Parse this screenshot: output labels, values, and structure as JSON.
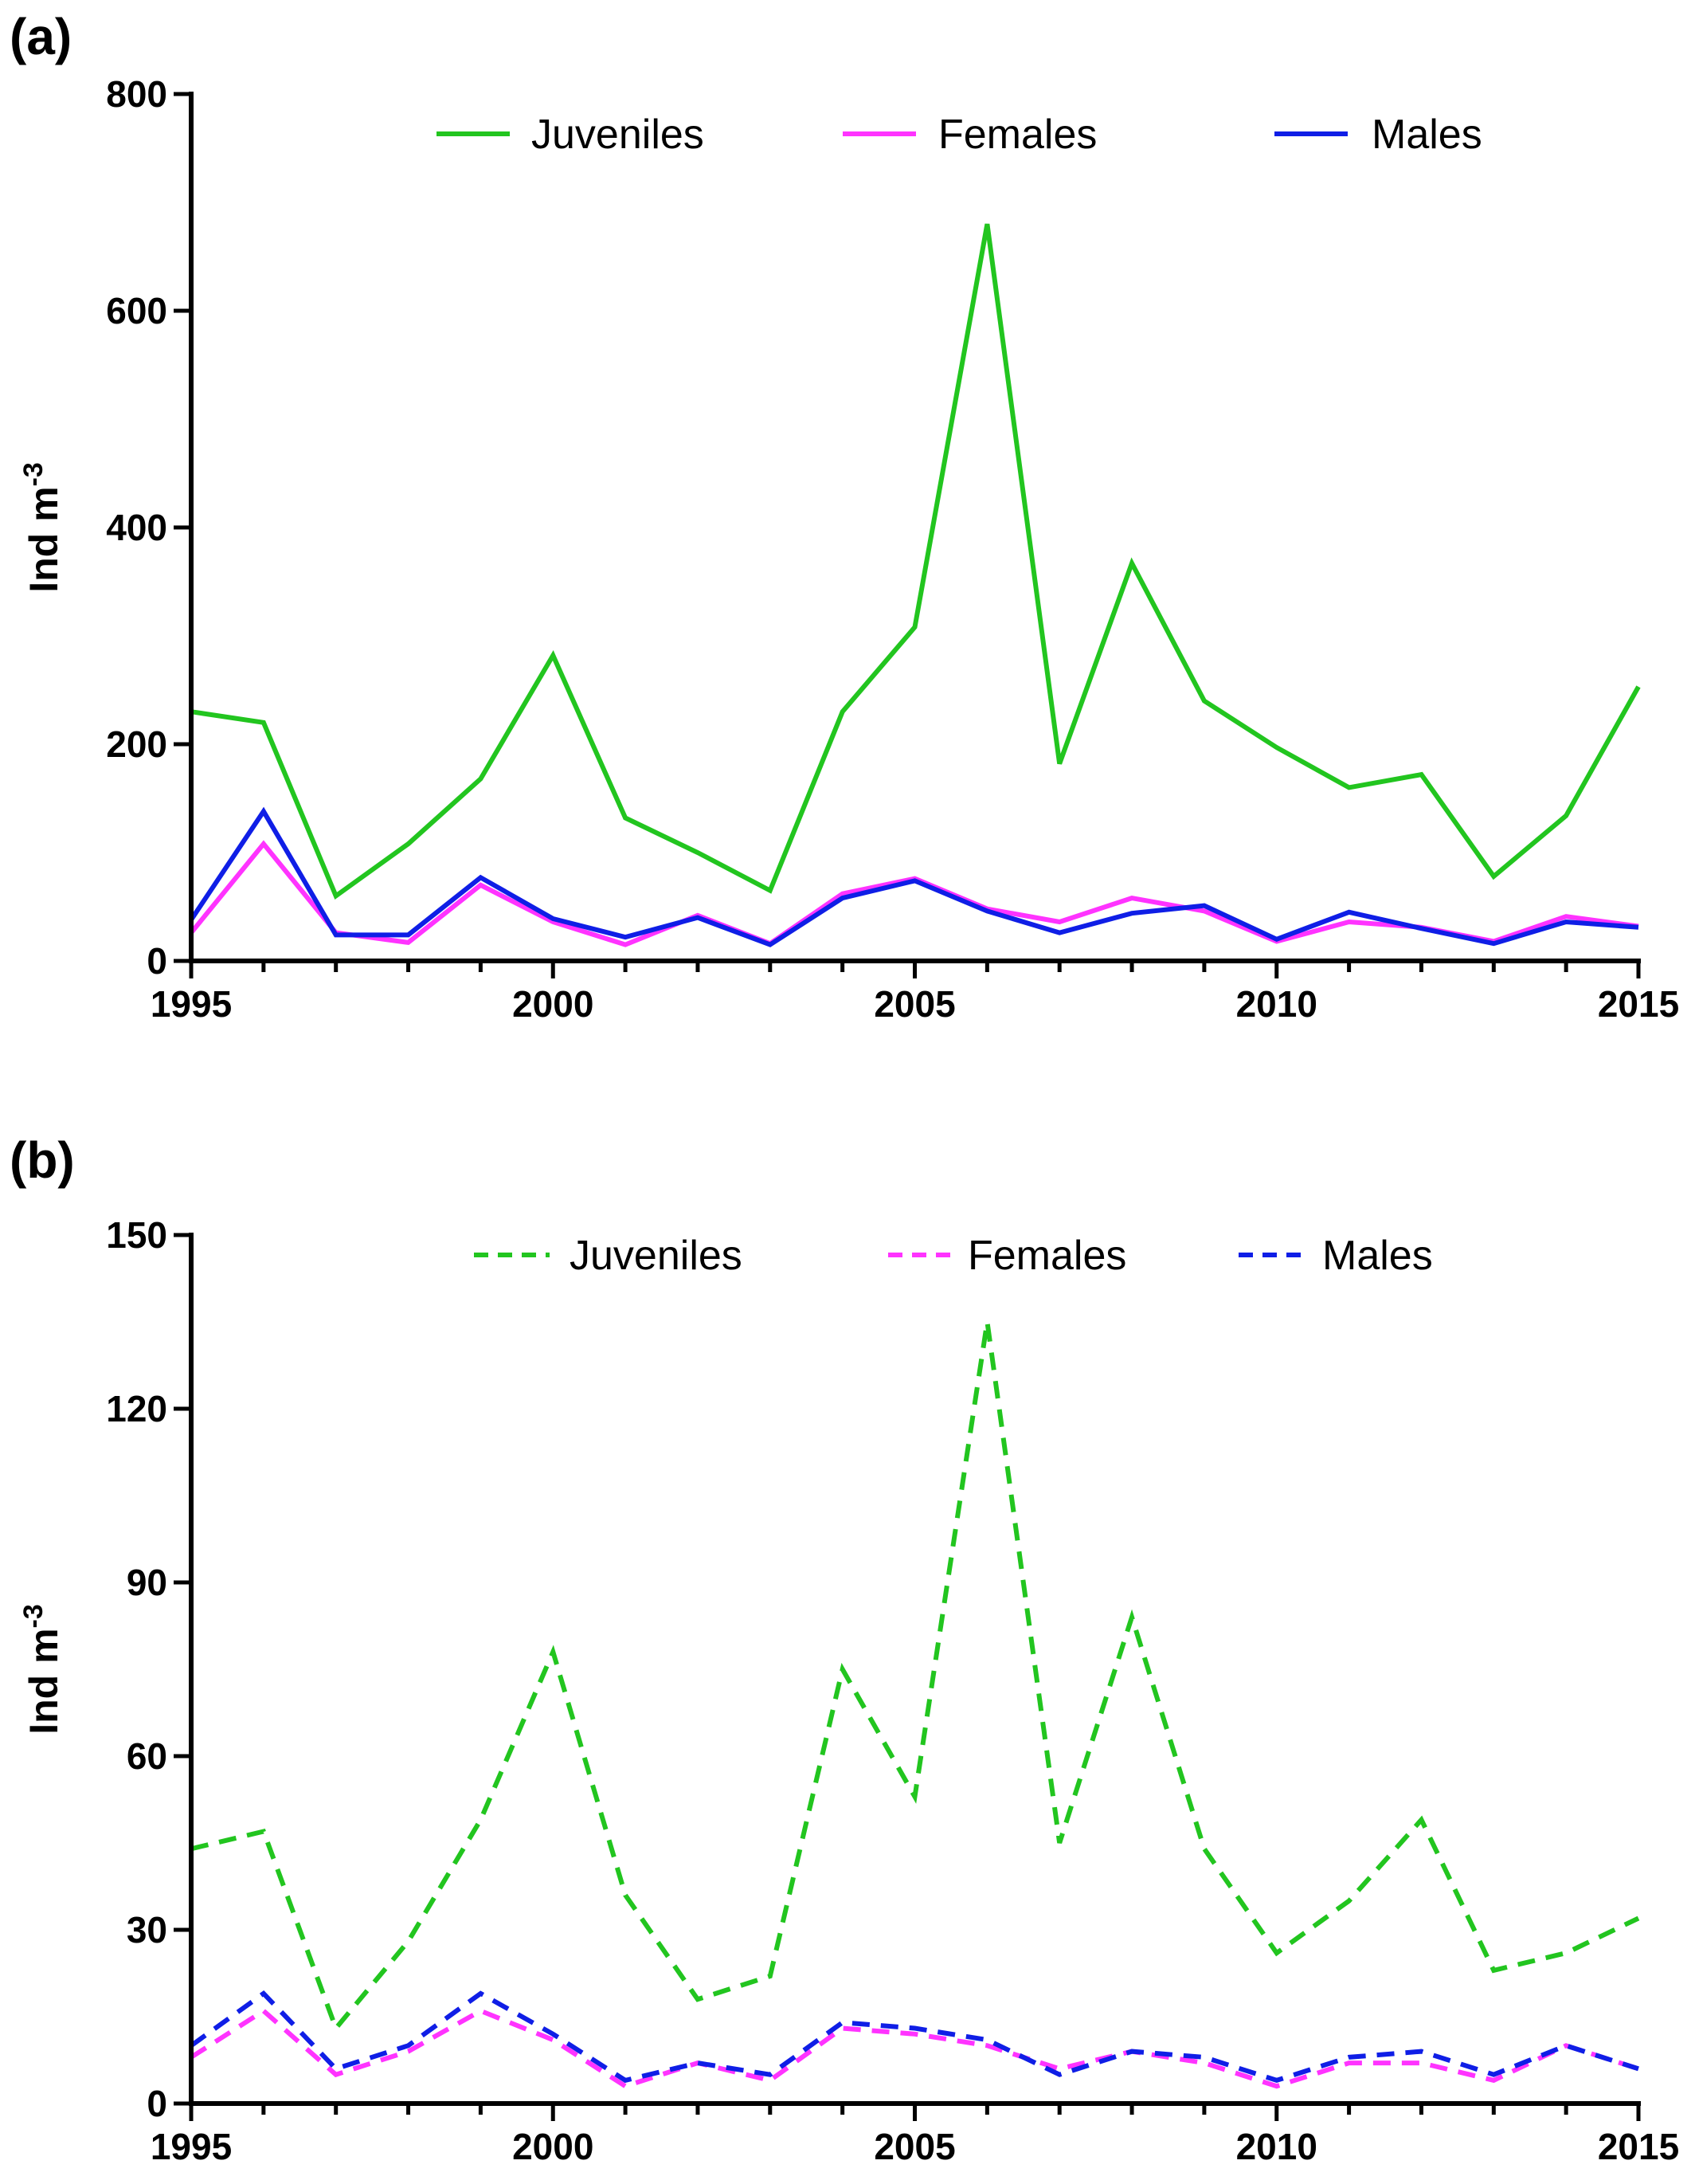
{
  "colors": {
    "juveniles": "#22c51f",
    "females": "#ff33ff",
    "males": "#0f1ee6",
    "axis": "#000000"
  },
  "chart_data": [
    {
      "type": "line",
      "panel_label": "(a)",
      "ylabel": "Ind m",
      "ylabel_superscript": "-3",
      "xlim": [
        1995,
        2015
      ],
      "ylim": [
        0,
        800
      ],
      "x_ticks": [
        1995,
        2000,
        2005,
        2010,
        2015
      ],
      "y_ticks": [
        0,
        200,
        400,
        600,
        800
      ],
      "line_style": "solid",
      "grid": false,
      "legend_position": "top",
      "x": [
        1995,
        1996,
        1997,
        1998,
        1999,
        2000,
        2001,
        2002,
        2003,
        2004,
        2005,
        2006,
        2007,
        2008,
        2009,
        2010,
        2011,
        2012,
        2013,
        2014,
        2015
      ],
      "series": [
        {
          "name": "Juveniles",
          "color_key": "juveniles",
          "values": [
            230,
            220,
            60,
            108,
            168,
            282,
            132,
            100,
            65,
            230,
            308,
            680,
            182,
            367,
            240,
            197,
            160,
            172,
            78,
            134,
            253
          ]
        },
        {
          "name": "Females",
          "color_key": "females",
          "values": [
            26,
            108,
            26,
            17,
            70,
            36,
            15,
            42,
            16,
            62,
            76,
            48,
            36,
            58,
            46,
            18,
            36,
            31,
            18,
            41,
            32
          ]
        },
        {
          "name": "Males",
          "color_key": "males",
          "values": [
            38,
            138,
            24,
            24,
            77,
            39,
            22,
            40,
            15,
            58,
            74,
            46,
            26,
            44,
            51,
            20,
            45,
            30,
            16,
            36,
            31
          ]
        }
      ]
    },
    {
      "type": "line",
      "panel_label": "(b)",
      "ylabel": "Ind m",
      "ylabel_superscript": "-3",
      "xlim": [
        1995,
        2015
      ],
      "ylim": [
        0,
        150
      ],
      "x_ticks": [
        1995,
        2000,
        2005,
        2010,
        2015
      ],
      "y_ticks": [
        0,
        30,
        60,
        90,
        120,
        150
      ],
      "line_style": "dashed",
      "grid": false,
      "legend_position": "top",
      "x": [
        1995,
        1996,
        1997,
        1998,
        1999,
        2000,
        2001,
        2002,
        2003,
        2004,
        2005,
        2006,
        2007,
        2008,
        2009,
        2010,
        2011,
        2012,
        2013,
        2014,
        2015
      ],
      "series": [
        {
          "name": "Juveniles",
          "color_key": "juveniles",
          "values": [
            44,
            47,
            13,
            28,
            49,
            78,
            36,
            18,
            22,
            75,
            53,
            135,
            45,
            84,
            44,
            26,
            35,
            49,
            23,
            26,
            32
          ]
        },
        {
          "name": "Females",
          "color_key": "females",
          "values": [
            8,
            16,
            5,
            9,
            16,
            11,
            3,
            7,
            4,
            13,
            12,
            10,
            6,
            9,
            7,
            3,
            7,
            7,
            4,
            10,
            6
          ]
        },
        {
          "name": "Males",
          "color_key": "males",
          "values": [
            10,
            19,
            6,
            10,
            19,
            12,
            4,
            7,
            5,
            14,
            13,
            11,
            5,
            9,
            8,
            4,
            8,
            9,
            5,
            10,
            6
          ]
        }
      ]
    }
  ]
}
